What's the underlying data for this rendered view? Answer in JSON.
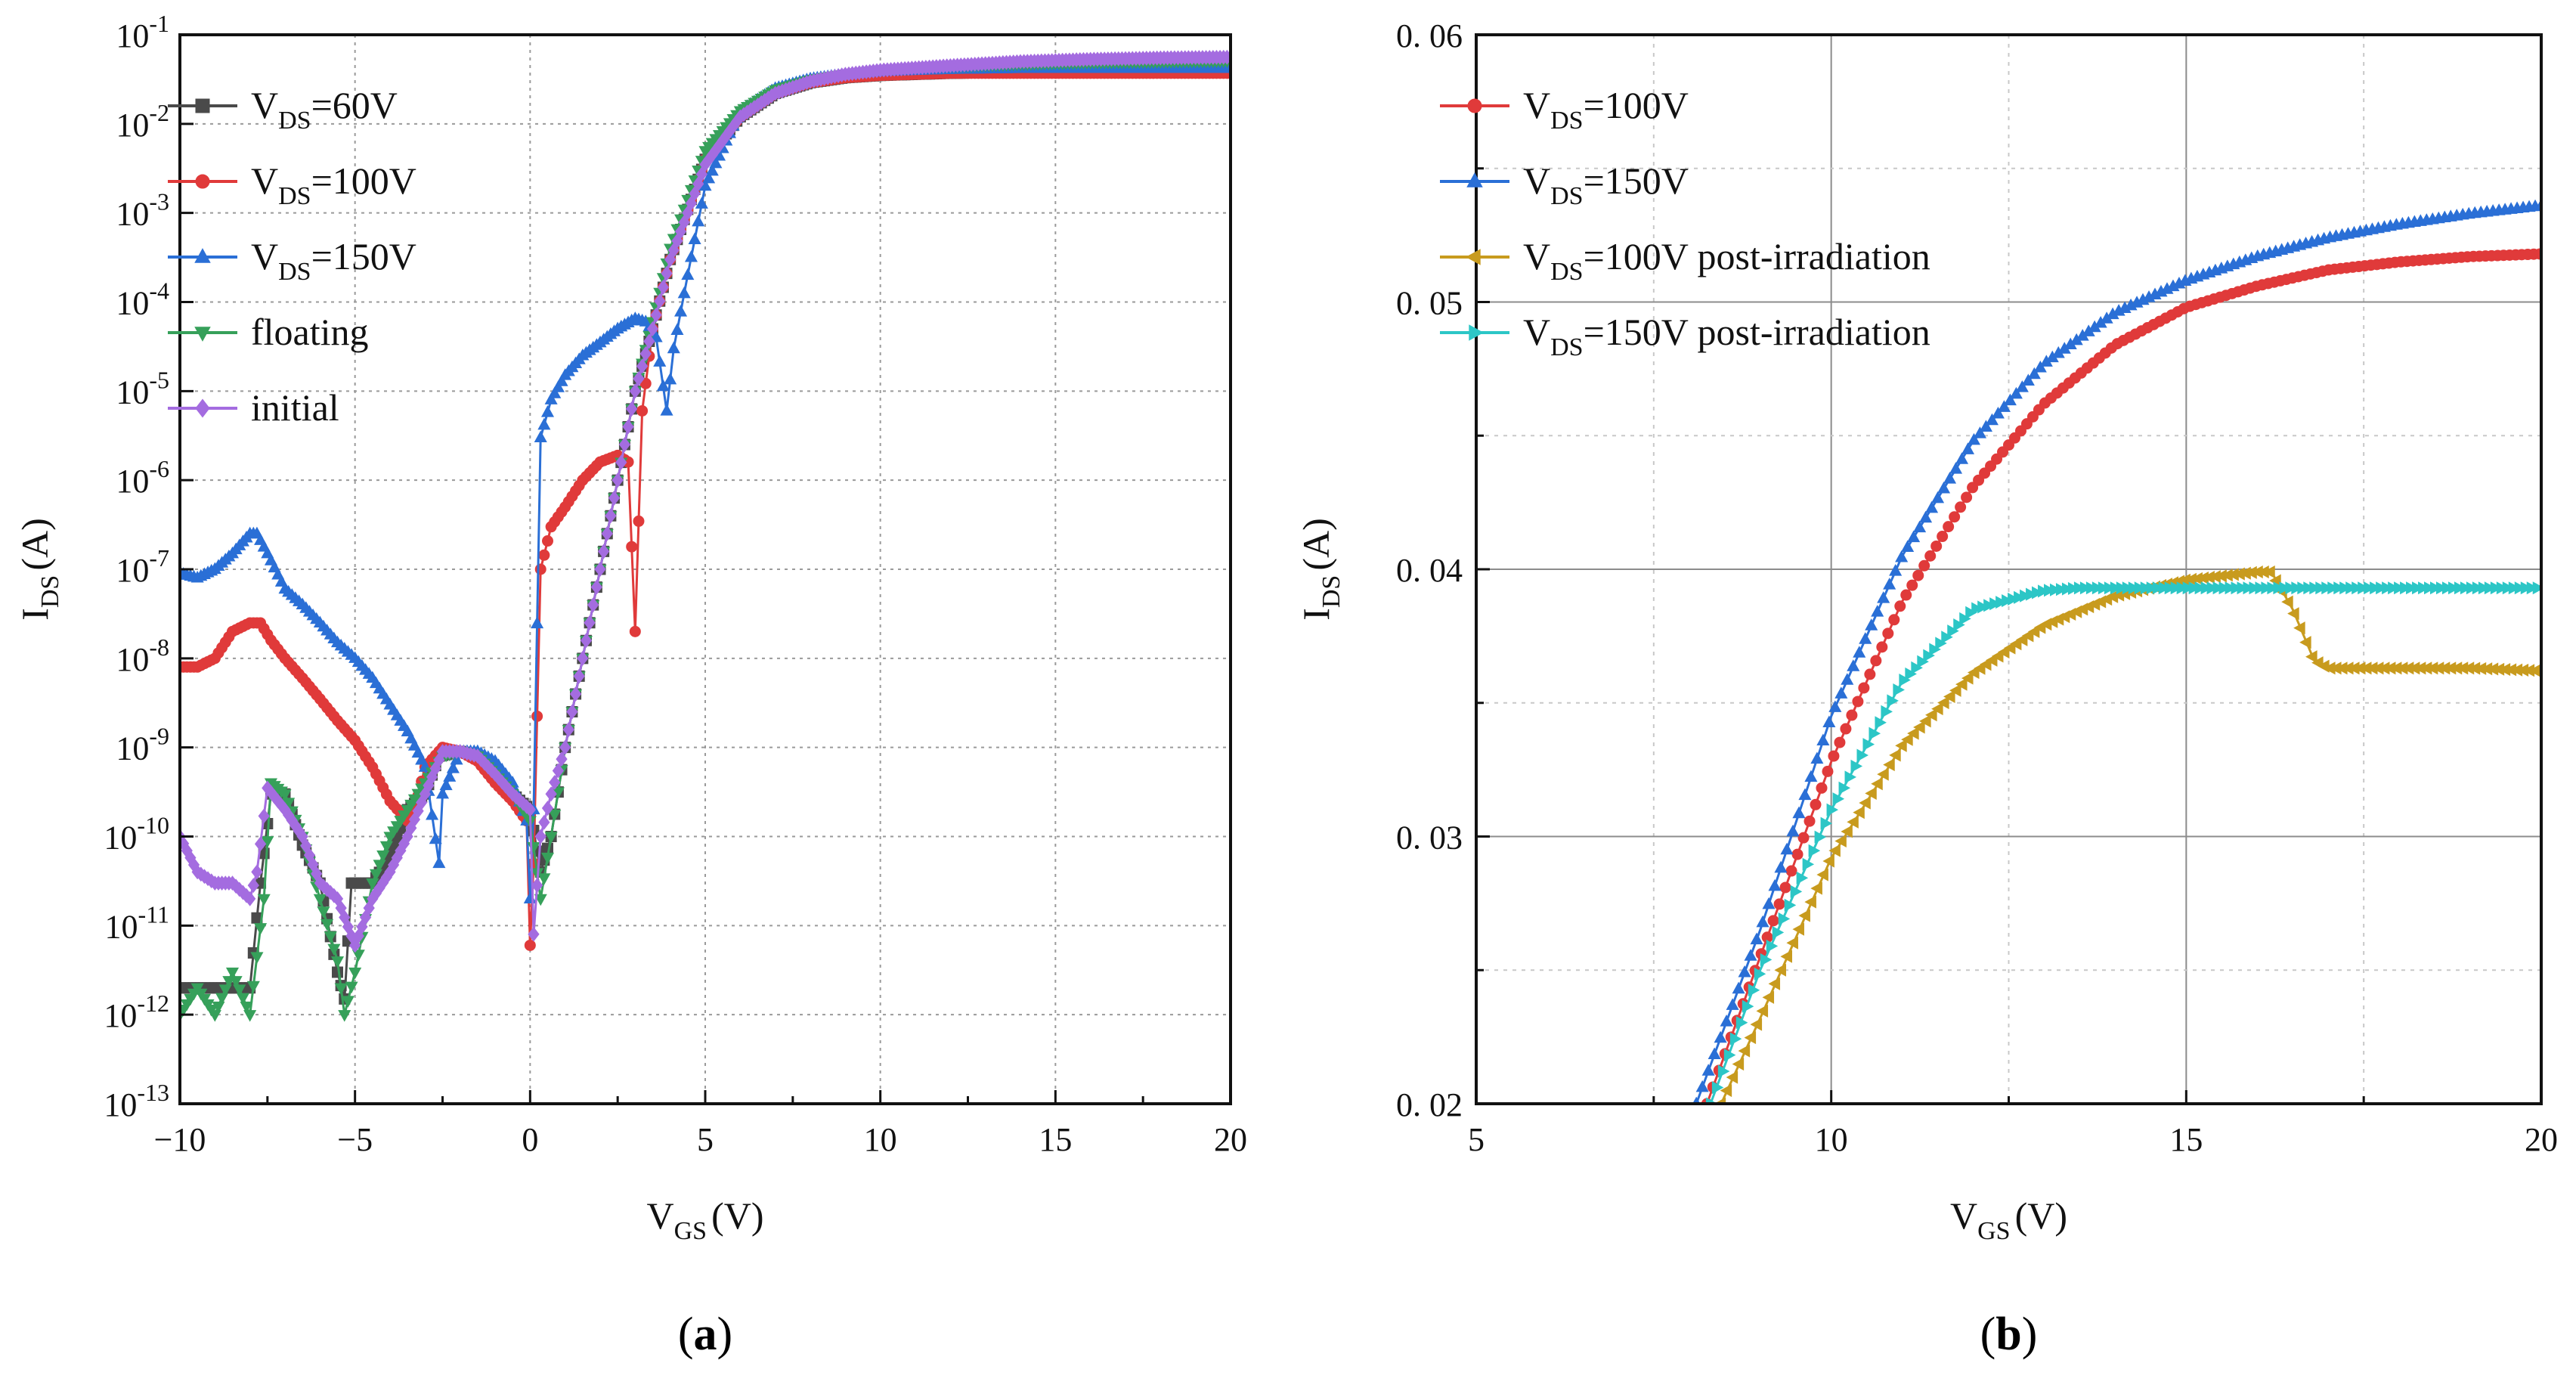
{
  "chart_data": [
    {
      "id": "a",
      "type": "line",
      "yscale": "log",
      "panel_label": [
        "(",
        "a",
        ")"
      ],
      "xlabel": [
        "V",
        "GS",
        "(V)"
      ],
      "ylabel": [
        "I",
        "DS",
        "(A)"
      ],
      "xlim": [
        -10,
        20
      ],
      "ylim": [
        1e-13,
        0.1
      ],
      "grid": true,
      "legend_position": "top-left",
      "xticks": [
        -10,
        -5,
        0,
        5,
        10,
        15,
        20
      ],
      "xtick_labels": [
        "−10",
        "−5",
        "0",
        "5",
        "10",
        "15",
        "20"
      ],
      "yticks": [
        {
          "value": 0.1,
          "base": "10",
          "exp": "-1"
        },
        {
          "value": 0.01,
          "base": "10",
          "exp": "-2"
        },
        {
          "value": 0.001,
          "base": "10",
          "exp": "-3"
        },
        {
          "value": 0.0001,
          "base": "10",
          "exp": "-4"
        },
        {
          "value": 1e-05,
          "base": "10",
          "exp": "-5"
        },
        {
          "value": 1e-06,
          "base": "10",
          "exp": "-6"
        },
        {
          "value": 1e-07,
          "base": "10",
          "exp": "-7"
        },
        {
          "value": 1e-08,
          "base": "10",
          "exp": "-8"
        },
        {
          "value": 1e-09,
          "base": "10",
          "exp": "-9"
        },
        {
          "value": 1e-10,
          "base": "10",
          "exp": "-10"
        },
        {
          "value": 1e-11,
          "base": "10",
          "exp": "-11"
        },
        {
          "value": 1e-12,
          "base": "10",
          "exp": "-12"
        },
        {
          "value": 1e-13,
          "base": "10",
          "exp": "-13"
        }
      ],
      "series": [
        {
          "name": "V_DS=60V",
          "legend": [
            "V",
            "DS",
            "=60V"
          ],
          "color": "#4a4a4a",
          "marker": "square",
          "x": [
            -10,
            -9.5,
            -9,
            -8.5,
            -8,
            -7.7,
            -7.4,
            -7,
            -6.5,
            -6,
            -5.5,
            -5.3,
            -5.1,
            -4.5,
            -4,
            -3.5,
            -3,
            -2.6,
            -2,
            -1.5,
            -1,
            -0.5,
            0,
            0.3,
            0.6,
            1,
            1.5,
            2,
            2.5,
            3,
            3.5,
            4,
            5,
            6,
            7,
            8,
            9,
            10,
            12,
            14,
            16,
            18,
            20
          ],
          "y": [
            2e-12,
            2e-12,
            2e-12,
            2e-12,
            2e-12,
            3e-11,
            3e-10,
            3e-10,
            8e-11,
            3e-11,
            3e-12,
            1.5e-12,
            3e-11,
            3e-11,
            6e-11,
            2e-10,
            3e-10,
            8e-10,
            9e-10,
            8e-10,
            5e-10,
            3e-10,
            2e-10,
            4e-11,
            1e-10,
            1e-09,
            1e-08,
            1e-07,
            1e-06,
            1e-05,
            5e-05,
            0.0003,
            0.004,
            0.012,
            0.022,
            0.029,
            0.033,
            0.035,
            0.037,
            0.038,
            0.038,
            0.038,
            0.038
          ]
        },
        {
          "name": "V_DS=100V",
          "legend": [
            "V",
            "DS",
            "=100V"
          ],
          "color": "#e03a3a",
          "marker": "circle",
          "x": [
            -10,
            -9.5,
            -9,
            -8.5,
            -8,
            -7.7,
            -7.4,
            -7,
            -6.5,
            -6,
            -5.5,
            -5,
            -4.5,
            -4,
            -3.5,
            -3.3,
            -3,
            -2.5,
            -2,
            -1.5,
            -1,
            -0.5,
            -0.1,
            0,
            0.1,
            0.3,
            0.6,
            1,
            1.5,
            2,
            2.5,
            2.8,
            3.0,
            3.2,
            3.5,
            4,
            5,
            6,
            7,
            8,
            9,
            10,
            12,
            14,
            16,
            18,
            20
          ],
          "y": [
            8e-09,
            8e-09,
            1e-08,
            2e-08,
            2.5e-08,
            2.5e-08,
            1.6e-08,
            1e-08,
            6e-09,
            3.5e-09,
            2e-09,
            1.2e-09,
            6e-10,
            2.5e-10,
            1.5e-10,
            2e-10,
            6e-10,
            1e-09,
            9e-10,
            7e-10,
            4e-10,
            2.5e-10,
            1.5e-10,
            6e-12,
            5e-11,
            1e-07,
            3e-07,
            5e-07,
            1e-06,
            1.6e-06,
            1.9e-06,
            1.6e-06,
            2e-08,
            6e-06,
            5e-05,
            0.0003,
            0.004,
            0.012,
            0.022,
            0.029,
            0.033,
            0.035,
            0.037,
            0.037,
            0.037,
            0.037,
            0.037
          ]
        },
        {
          "name": "V_DS=150V",
          "legend": [
            "V",
            "DS",
            "=150V"
          ],
          "color": "#2a6fd6",
          "marker": "triangle-up",
          "x": [
            -10,
            -9.5,
            -9,
            -8.5,
            -8,
            -7.8,
            -7.5,
            -7,
            -6.5,
            -6,
            -5.5,
            -5,
            -4.5,
            -4,
            -3.5,
            -3,
            -2.6,
            -2.5,
            -2,
            -1.5,
            -1,
            -0.5,
            -0.1,
            0,
            0.1,
            0.3,
            0.6,
            1,
            1.5,
            2,
            2.5,
            3,
            3.3,
            3.6,
            3.9,
            4.1,
            4.5,
            5,
            6,
            7,
            8,
            9,
            10,
            12,
            14,
            16,
            18,
            20
          ],
          "y": [
            9e-08,
            8e-08,
            1e-07,
            1.5e-07,
            2.5e-07,
            2.5e-07,
            1.5e-07,
            6e-08,
            4e-08,
            2.5e-08,
            1.5e-08,
            1e-08,
            6e-09,
            3e-09,
            1.5e-09,
            6e-10,
            5e-11,
            3e-10,
            9e-10,
            9e-10,
            7e-10,
            4e-10,
            1.5e-10,
            2e-11,
            2e-10,
            3e-06,
            8e-06,
            1.5e-05,
            2.5e-05,
            3.5e-05,
            5e-05,
            6.5e-05,
            6e-05,
            4e-05,
            6e-06,
            3e-05,
            0.0002,
            0.002,
            0.014,
            0.025,
            0.032,
            0.036,
            0.039,
            0.041,
            0.042,
            0.042,
            0.042,
            0.042
          ]
        },
        {
          "name": "floating",
          "legend": [
            "floating"
          ],
          "color": "#36a05a",
          "marker": "triangle-down",
          "x": [
            -10,
            -9.5,
            -9,
            -8.5,
            -8,
            -7.6,
            -7.4,
            -7,
            -6.5,
            -6,
            -5.5,
            -5.3,
            -5,
            -4.5,
            -4,
            -3.5,
            -3,
            -2.5,
            -2,
            -1.5,
            -1,
            -0.5,
            0,
            0.3,
            0.6,
            1,
            1.5,
            2,
            2.5,
            3,
            3.5,
            4,
            5,
            6,
            7,
            8,
            9,
            10,
            12,
            14,
            16,
            18,
            20
          ],
          "y": [
            1e-12,
            2e-12,
            1e-12,
            3e-12,
            1e-12,
            2e-11,
            4e-10,
            3e-10,
            1e-10,
            2e-11,
            4e-12,
            1e-12,
            3e-12,
            3e-11,
            1e-10,
            2e-10,
            4e-10,
            8e-10,
            9e-10,
            8e-10,
            5e-10,
            3e-10,
            1.5e-10,
            2e-11,
            1e-10,
            1e-09,
            1e-08,
            1e-07,
            1e-06,
            1e-05,
            6e-05,
            0.0004,
            0.005,
            0.014,
            0.024,
            0.031,
            0.036,
            0.04,
            0.044,
            0.047,
            0.049,
            0.05,
            0.051
          ]
        },
        {
          "name": "initial",
          "legend": [
            "initial"
          ],
          "color": "#a46ce0",
          "marker": "diamond",
          "x": [
            -10,
            -9.5,
            -9,
            -8.5,
            -8,
            -7.8,
            -7.5,
            -7,
            -6.5,
            -6,
            -5.5,
            -5,
            -4.5,
            -4,
            -3.5,
            -3,
            -2.5,
            -2,
            -1.5,
            -1,
            -0.5,
            0,
            0.1,
            0.3,
            0.6,
            1,
            1.5,
            2,
            2.5,
            3,
            3.5,
            4,
            4.5,
            5,
            6,
            7,
            8,
            9,
            10,
            12,
            14,
            16,
            18,
            20
          ],
          "y": [
            1e-10,
            4e-11,
            3e-11,
            3e-11,
            2e-11,
            4e-11,
            3.5e-10,
            2e-10,
            1e-10,
            3e-11,
            2e-11,
            6e-12,
            2e-11,
            4e-11,
            1e-10,
            3e-10,
            9e-10,
            9e-10,
            8e-10,
            5e-10,
            3e-10,
            2e-10,
            8e-12,
            1e-10,
            3e-10,
            1e-09,
            1e-08,
            1e-07,
            1e-06,
            1e-05,
            5e-05,
            0.0003,
            0.001,
            0.0035,
            0.012,
            0.022,
            0.03,
            0.036,
            0.04,
            0.045,
            0.05,
            0.053,
            0.055,
            0.056
          ]
        }
      ]
    },
    {
      "id": "b",
      "type": "line",
      "yscale": "linear",
      "panel_label": [
        "(",
        "b",
        ")"
      ],
      "xlabel": [
        "V",
        "GS",
        "(V)"
      ],
      "ylabel": [
        "I",
        "DS",
        "(A)"
      ],
      "xlim": [
        5,
        20
      ],
      "ylim": [
        0.02,
        0.06
      ],
      "grid": true,
      "legend_position": "top-left",
      "xticks": [
        5,
        10,
        15,
        20
      ],
      "xtick_labels": [
        "5",
        "10",
        "15",
        "20"
      ],
      "yticks": [
        0.02,
        0.03,
        0.04,
        0.05,
        0.06
      ],
      "ytick_labels": [
        "0. 02",
        "0. 03",
        "0. 04",
        "0. 05",
        "0. 06"
      ],
      "series": [
        {
          "name": "V_DS=100V",
          "legend": [
            "V",
            "DS",
            "=100V"
          ],
          "color": "#e03a3a",
          "marker": "circle",
          "x": [
            8.25,
            9,
            10,
            11,
            12,
            13,
            14,
            15,
            16,
            17,
            18,
            19,
            20
          ],
          "y": [
            0.02,
            0.0255,
            0.0328,
            0.0388,
            0.0431,
            0.0462,
            0.0484,
            0.0498,
            0.0506,
            0.0512,
            0.0515,
            0.0517,
            0.0518
          ]
        },
        {
          "name": "V_DS=150V",
          "legend": [
            "V",
            "DS",
            "=150V"
          ],
          "color": "#2a6fd6",
          "marker": "triangle-up",
          "x": [
            8.1,
            9,
            10,
            11,
            12,
            13,
            14,
            15,
            16,
            17,
            18,
            19,
            20
          ],
          "y": [
            0.02,
            0.0265,
            0.0345,
            0.0405,
            0.0448,
            0.0477,
            0.0496,
            0.0508,
            0.0517,
            0.0524,
            0.0529,
            0.0533,
            0.0536
          ]
        },
        {
          "name": "V_DS=100V post-irradiation",
          "legend": [
            "V",
            "DS",
            "=100V post-irradiation"
          ],
          "color": "#c89b1e",
          "marker": "triangle-left",
          "x": [
            8.45,
            9,
            10,
            11,
            12,
            13,
            14,
            15,
            16,
            16.2,
            16.5,
            16.8,
            17,
            18,
            19,
            20
          ],
          "y": [
            0.02,
            0.0232,
            0.0292,
            0.0334,
            0.0361,
            0.0379,
            0.039,
            0.0396,
            0.0399,
            0.0399,
            0.0385,
            0.0366,
            0.0363,
            0.0363,
            0.0363,
            0.0362
          ]
        },
        {
          "name": "V_DS=150V post-irradiation",
          "legend": [
            "V",
            "DS",
            "=150V post-irradiation"
          ],
          "color": "#2cc6c6",
          "marker": "triangle-right",
          "x": [
            8.3,
            9,
            10,
            11,
            12,
            13,
            13.5,
            14,
            15,
            16,
            17,
            18,
            19,
            20
          ],
          "y": [
            0.02,
            0.025,
            0.031,
            0.0358,
            0.0385,
            0.0392,
            0.0393,
            0.0393,
            0.0393,
            0.0393,
            0.0393,
            0.0393,
            0.0393,
            0.0393
          ]
        }
      ]
    }
  ]
}
